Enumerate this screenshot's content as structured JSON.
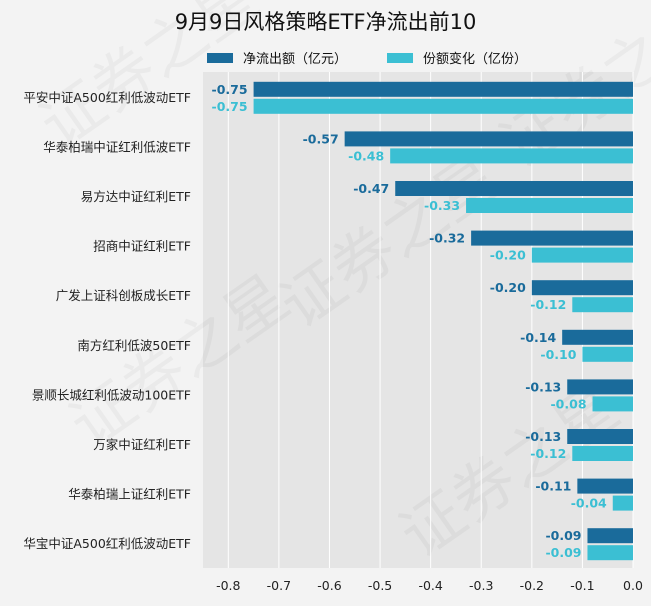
{
  "chart_data": {
    "type": "bar",
    "orientation": "horizontal",
    "title": "9月9日风格策略ETF净流出前10",
    "categories": [
      "平安中证A500红利低波动ETF",
      "华泰柏瑞中证红利低波ETF",
      "易方达中证红利ETF",
      "招商中证红利ETF",
      "广发上证科创板成长ETF",
      "南方红利低波50ETF",
      "景顺长城红利低波动100ETF",
      "万家中证红利ETF",
      "华泰柏瑞上证红利ETF",
      "华宝中证A500红利低波动ETF"
    ],
    "series": [
      {
        "name": "净流出额（亿元）",
        "color": "#1a6b9b",
        "values": [
          -0.75,
          -0.57,
          -0.47,
          -0.32,
          -0.2,
          -0.14,
          -0.13,
          -0.13,
          -0.11,
          -0.09
        ],
        "labels": [
          "-0.75",
          "-0.57",
          "-0.47",
          "-0.32",
          "-0.20",
          "-0.14",
          "-0.13",
          "-0.13",
          "-0.11",
          "-0.09"
        ]
      },
      {
        "name": "份额变化（亿份）",
        "color": "#3bbfd3",
        "values": [
          -0.75,
          -0.48,
          -0.33,
          -0.2,
          -0.12,
          -0.1,
          -0.08,
          -0.12,
          -0.04,
          -0.09
        ],
        "labels": [
          "-0.75",
          "-0.48",
          "-0.33",
          "-0.20",
          "-0.12",
          "-0.10",
          "-0.08",
          "-0.12",
          "-0.04",
          "-0.09"
        ]
      }
    ],
    "xlim": [
      -0.85,
      0
    ],
    "xticks": [
      -0.8,
      -0.7,
      -0.6,
      -0.5,
      -0.4,
      -0.3,
      -0.2,
      -0.1,
      0.0
    ],
    "xtick_labels": [
      "-0.8",
      "-0.7",
      "-0.6",
      "-0.5",
      "-0.4",
      "-0.3",
      "-0.2",
      "-0.1",
      "0.0"
    ],
    "grid": true,
    "legend_position": "top",
    "watermark": "证券之星",
    "colors": {
      "plot_bg": "#e5e5e5",
      "page_bg": "#f3f3f3",
      "grid": "#ffffff"
    }
  }
}
